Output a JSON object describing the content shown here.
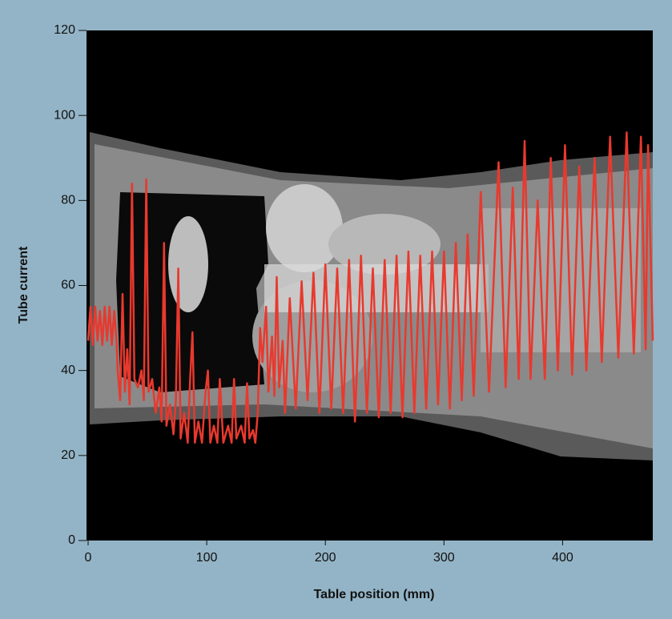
{
  "chart_data": {
    "type": "line",
    "x_label": "Table position (mm)",
    "y_label": "Tube current",
    "xlim": [
      0,
      476
    ],
    "xticks": [
      0,
      100,
      200,
      300,
      400
    ],
    "ylim": [
      0,
      120
    ],
    "yticks": [
      0,
      20,
      40,
      60,
      80,
      100,
      120
    ],
    "color": "#e8392e",
    "x": [
      0,
      2,
      4,
      6,
      8,
      10,
      12,
      14,
      16,
      18,
      20,
      22,
      24,
      25,
      27,
      29,
      31,
      33,
      35,
      37,
      39,
      42,
      45,
      47,
      49,
      51,
      54,
      57,
      60,
      62,
      64,
      66,
      69,
      72,
      74,
      76,
      78,
      81,
      84,
      86,
      88,
      90,
      93,
      96,
      99,
      101,
      103,
      106,
      109,
      111,
      114,
      118,
      121,
      123,
      125,
      129,
      132,
      134,
      136,
      139,
      141,
      143,
      145,
      147,
      150,
      152,
      155,
      157,
      159,
      161,
      164,
      166,
      170,
      175,
      180,
      185,
      190,
      195,
      200,
      205,
      210,
      215,
      220,
      225,
      230,
      235,
      240,
      245,
      250,
      255,
      260,
      265,
      270,
      275,
      280,
      285,
      290,
      295,
      300,
      305,
      310,
      315,
      320,
      325,
      331,
      338,
      346,
      352,
      358,
      363,
      368,
      373,
      379,
      385,
      390,
      396,
      402,
      408,
      414,
      420,
      427,
      433,
      440,
      447,
      454,
      460,
      466,
      470,
      472,
      476
    ],
    "values": [
      47,
      55,
      46,
      55,
      47,
      54,
      46,
      55,
      47,
      55,
      46,
      54,
      47,
      40,
      33,
      58,
      35,
      45,
      32,
      84,
      38,
      36,
      40,
      33,
      85,
      35,
      38,
      30,
      36,
      28,
      70,
      27,
      32,
      25,
      33,
      64,
      24,
      30,
      23,
      38,
      49,
      23,
      28,
      23,
      35,
      40,
      23,
      27,
      23,
      38,
      23,
      27,
      23,
      38,
      24,
      27,
      23,
      37,
      24,
      26,
      23,
      30,
      50,
      42,
      55,
      35,
      48,
      34,
      62,
      36,
      47,
      30,
      57,
      31,
      61,
      33,
      63,
      30,
      65,
      31,
      64,
      30,
      66,
      28,
      67,
      30,
      64,
      29,
      66,
      30,
      67,
      29,
      68,
      30,
      67,
      31,
      68,
      32,
      68,
      31,
      70,
      33,
      72,
      34,
      82,
      35,
      89,
      36,
      83,
      38,
      94,
      38,
      80,
      38,
      90,
      40,
      93,
      39,
      88,
      40,
      90,
      42,
      95,
      43,
      96,
      44,
      95,
      45,
      93,
      47
    ]
  }
}
